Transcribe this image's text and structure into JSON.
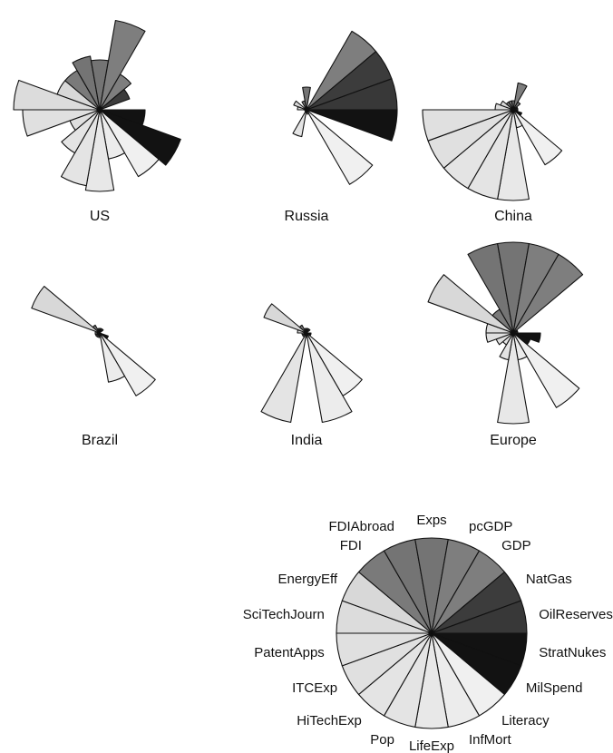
{
  "chart_data": {
    "type": "radial_segment_star",
    "title": "",
    "variables": [
      "StratNukes",
      "MilSpend",
      "Literacy",
      "InfMort",
      "LifeExp",
      "Pop",
      "HiTechExp",
      "ITCExp",
      "PatentApps",
      "SciTechJourn",
      "EnergyEff",
      "FDI",
      "FDIAbroad",
      "Exps",
      "pcGDP",
      "GDP",
      "NatGas",
      "OilReserves"
    ],
    "variable_colors": [
      "#121212",
      "#121212",
      "#f0f0f0",
      "#ececec",
      "#e8e8e8",
      "#e4e4e4",
      "#e4e4e4",
      "#e0e0e0",
      "#e0e0e0",
      "#dcdcdc",
      "#d8d8d8",
      "#7a7a7a",
      "#747474",
      "#747474",
      "#7e7e7e",
      "#7e7e7e",
      "#3c3c3c",
      "#383838"
    ],
    "series": [
      {
        "name": "US",
        "values": [
          0.5,
          0.95,
          0.85,
          0.55,
          0.9,
          0.85,
          0.55,
          0.35,
          0.85,
          0.95,
          0.5,
          0.5,
          0.6,
          0.55,
          1.0,
          0.45,
          0.35,
          0.0
        ]
      },
      {
        "name": "Russia",
        "values": [
          1.0,
          0.0,
          0.95,
          0.05,
          0.02,
          0.3,
          0.02,
          0.02,
          0.02,
          0.1,
          0.15,
          0.02,
          0.1,
          0.25,
          0.02,
          1.0,
          1.0,
          1.0
        ]
      },
      {
        "name": "China",
        "values": [
          0.05,
          0.1,
          0.7,
          0.2,
          1.0,
          1.0,
          1.0,
          1.0,
          1.0,
          0.2,
          0.15,
          0.1,
          0.1,
          0.1,
          0.3,
          0.1,
          0.05,
          0.05
        ]
      },
      {
        "name": "Brazil",
        "values": [
          0.0,
          0.1,
          0.8,
          0.55,
          0.05,
          0.05,
          0.05,
          0.05,
          0.05,
          0.05,
          0.8,
          0.1,
          0.05,
          0.05,
          0.05,
          0.05,
          0.0,
          0.0
        ]
      },
      {
        "name": "India",
        "values": [
          0.05,
          0.05,
          0.8,
          1.0,
          0.05,
          1.0,
          0.05,
          0.05,
          0.05,
          0.1,
          0.5,
          0.1,
          0.05,
          0.05,
          0.05,
          0.05,
          0.0,
          0.0
        ]
      },
      {
        "name": "Europe",
        "values": [
          0.3,
          0.2,
          0.95,
          0.3,
          1.0,
          0.3,
          0.15,
          0.2,
          0.3,
          0.3,
          1.0,
          0.3,
          1.0,
          1.0,
          1.0,
          1.0,
          0.05,
          0.05
        ]
      }
    ],
    "key_label": "",
    "grid": false,
    "legend": "bottom-center key wheel"
  }
}
